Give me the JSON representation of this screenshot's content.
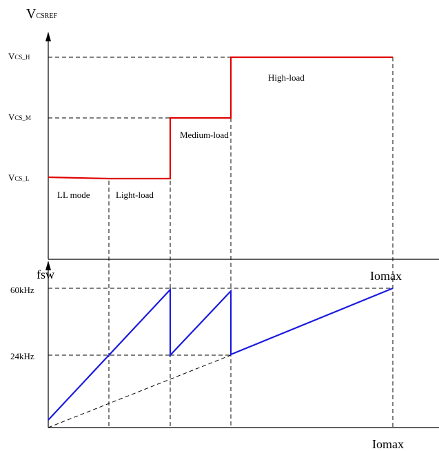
{
  "top_chart": {
    "y_axis_main": "V",
    "y_axis_sub": "CSREF",
    "levels": [
      {
        "main": "V",
        "sub": "CS_H"
      },
      {
        "main": "V",
        "sub": "CS_M"
      },
      {
        "main": "V",
        "sub": "CS_L"
      }
    ],
    "regions": [
      "LL mode",
      "Light-load",
      "Medium-load",
      "High-load"
    ],
    "line_color": "#e00000"
  },
  "bottom_chart": {
    "y_axis_label": "fsw",
    "top_right_label": "Iomax",
    "freq_ticks": [
      "60kHz",
      "24kHz"
    ],
    "line_color": "#1a1adf"
  },
  "x_axis_label": "Iomax"
}
